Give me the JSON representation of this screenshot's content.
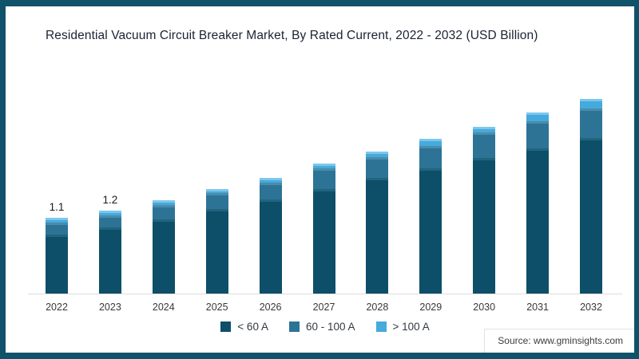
{
  "title": "Residential Vacuum Circuit Breaker Market, By Rated Current, 2022 - 2032 (USD Billion)",
  "source": "Source: www.gminsights.com",
  "colors": {
    "frame_border": "#10526a",
    "axis_line": "#dcdcdc",
    "series_dark": "#0d4f68",
    "series_medium": "#2d7396",
    "series_light": "#45aadc"
  },
  "chart_data": {
    "type": "bar",
    "stacked": true,
    "title": "Residential Vacuum Circuit Breaker Market, By Rated Current, 2022 - 2032 (USD Billion)",
    "units": "USD Billion",
    "legend_position": "bottom",
    "grid": false,
    "ylim": [
      0,
      3.2
    ],
    "categories": [
      "2022",
      "2023",
      "2024",
      "2025",
      "2026",
      "2027",
      "2028",
      "2029",
      "2030",
      "2031",
      "2032"
    ],
    "series": [
      {
        "name": "< 60 A",
        "color": "#0d4f68",
        "highlight": "#21647e",
        "values": [
          0.86,
          0.96,
          1.08,
          1.22,
          1.36,
          1.52,
          1.68,
          1.82,
          1.97,
          2.1,
          2.25
        ]
      },
      {
        "name": "60 - 100 A",
        "color": "#2d7396",
        "highlight": "#4a8cab",
        "values": [
          0.17,
          0.17,
          0.2,
          0.24,
          0.25,
          0.29,
          0.3,
          0.32,
          0.36,
          0.4,
          0.43
        ]
      },
      {
        "name": "> 100 A",
        "color": "#45aadc",
        "highlight": "#7cc7ec",
        "values": [
          0.07,
          0.07,
          0.07,
          0.06,
          0.07,
          0.07,
          0.08,
          0.1,
          0.09,
          0.12,
          0.14
        ]
      }
    ],
    "totals": [
      1.1,
      1.2,
      1.35,
      1.52,
      1.68,
      1.88,
      2.06,
      2.24,
      2.42,
      2.62,
      2.82
    ],
    "bar_labels": [
      "1.1",
      "1.2",
      "",
      "",
      "",
      "",
      "",
      "",
      "",
      "",
      ""
    ]
  }
}
